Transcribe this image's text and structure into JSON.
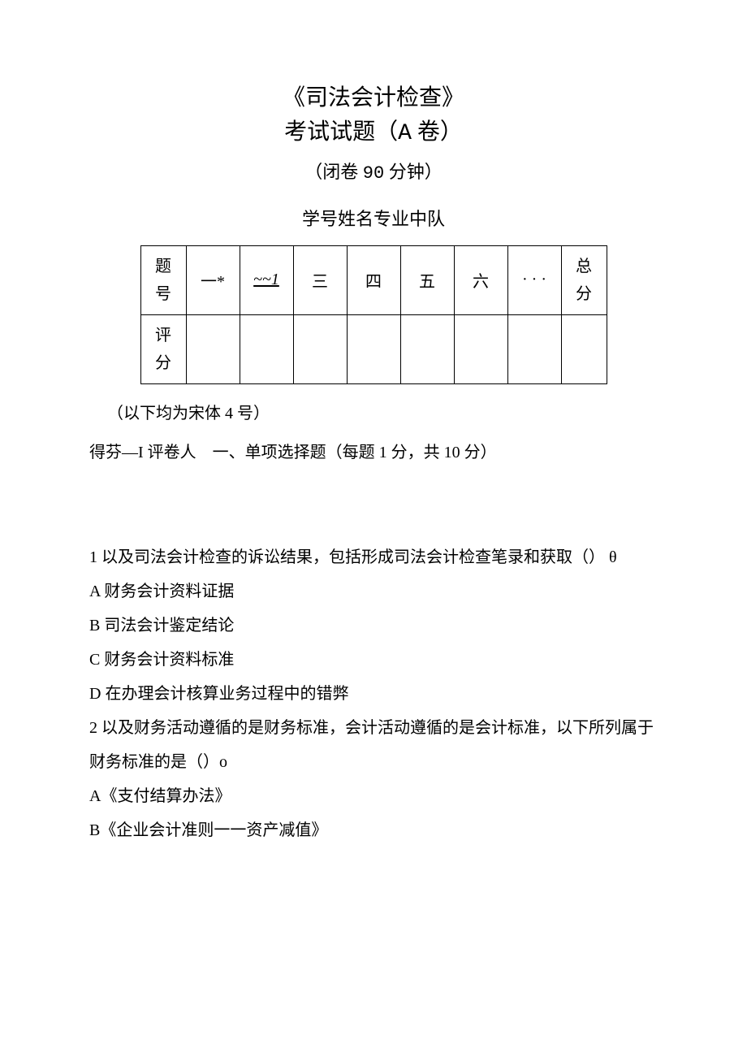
{
  "header": {
    "main_title": "《司法会计检查》",
    "sub_title_prefix": "考试试题（",
    "sub_title_mono": "A",
    "sub_title_suffix": " 卷）",
    "duration_prefix": "（闭卷 ",
    "duration_mono": "90",
    "duration_suffix": " 分钟）",
    "student_info": "学号姓名专业中队"
  },
  "table": {
    "row1_label": "题号",
    "row2_label": "评分",
    "cols": [
      "一*",
      "~~1",
      "三",
      "四",
      "五",
      "六",
      "· · ·"
    ],
    "total_label": "总分"
  },
  "note": "（以下均为宋体 4 号）",
  "section": {
    "prefix": "得芬—I 评卷人",
    "title": "一、单项选择题（每题 1 分，共 10 分）"
  },
  "q1": {
    "stem": "1 以及司法会计检查的诉讼结果，包括形成司法会计检查笔录和获取（） θ",
    "a": "A 财务会计资料证据",
    "b": "B 司法会计鉴定结论",
    "c": "C 财务会计资料标准",
    "d": "D 在办理会计核算业务过程中的错弊"
  },
  "q2": {
    "stem": "2 以及财务活动遵循的是财务标准，会计活动遵循的是会计标准，以下所列属于财务标准的是（）o",
    "a": "A《支付结算办法》",
    "b": "B《企业会计准则一一资产减值》"
  },
  "style": {
    "background_color": "#ffffff",
    "text_color": "#000000",
    "border_color": "#000000",
    "title_fontsize": 28,
    "body_fontsize": 20,
    "line_height": 2.1
  }
}
